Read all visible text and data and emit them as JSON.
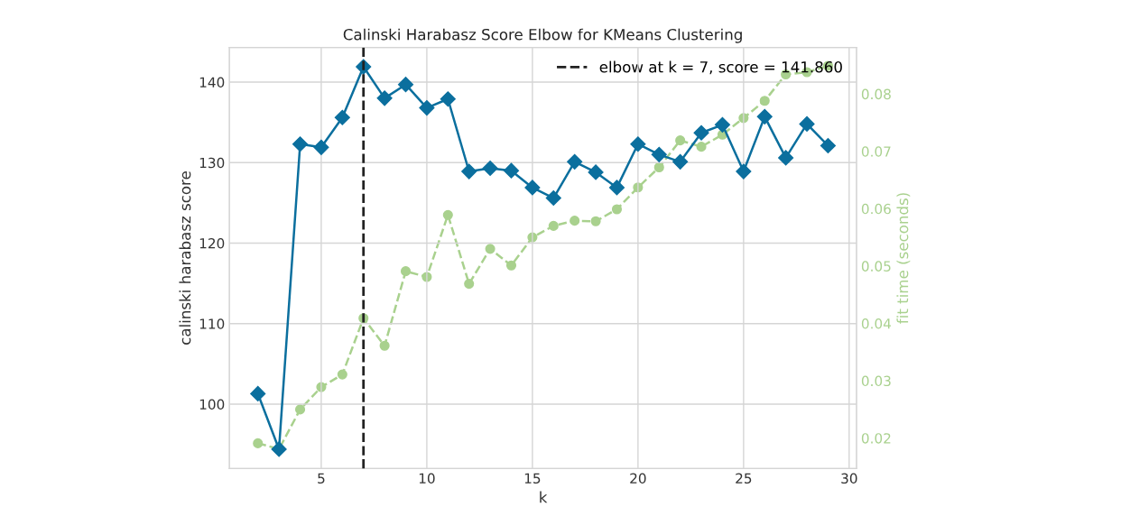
{
  "chart_data": {
    "type": "line",
    "title": "Calinski Harabasz Score Elbow for KMeans Clustering",
    "xlabel": "k",
    "ylabel": "calinski harabasz score",
    "y2label": "fit time (seconds)",
    "x": [
      2,
      3,
      4,
      5,
      6,
      7,
      8,
      9,
      10,
      11,
      12,
      13,
      14,
      15,
      16,
      17,
      18,
      19,
      20,
      21,
      22,
      23,
      24,
      25,
      26,
      27,
      28,
      29
    ],
    "series": [
      {
        "color": "#0b6f9e",
        "marker": "diamond",
        "line_style": "solid",
        "values": [
          101.3,
          94.4,
          132.3,
          131.9,
          135.6,
          141.9,
          138.0,
          139.7,
          136.8,
          137.9,
          128.9,
          129.3,
          129.0,
          126.9,
          125.6,
          130.1,
          128.8,
          126.9,
          132.3,
          131.0,
          130.1,
          133.7,
          134.7,
          128.9,
          135.7,
          130.6,
          134.8,
          132.1
        ]
      },
      {
        "color": "#a9d18e",
        "marker": "circle",
        "line_style": "dashed",
        "axis": "y2",
        "values": [
          0.0191,
          0.0181,
          0.025,
          0.0289,
          0.0311,
          0.0409,
          0.0361,
          0.0491,
          0.0481,
          0.0589,
          0.0469,
          0.053,
          0.0501,
          0.055,
          0.057,
          0.0579,
          0.0578,
          0.0599,
          0.0637,
          0.0672,
          0.0719,
          0.0708,
          0.0729,
          0.0758,
          0.0788,
          0.0834,
          0.0838,
          0.0849
        ]
      }
    ],
    "ref_lines": [
      {
        "axis": "x",
        "value": 7,
        "label": "elbow at k = 7, score = 141.860",
        "color": "#222222",
        "line_style": "dashed"
      }
    ],
    "xlim": [
      0.65,
      30.35
    ],
    "xticks": [
      5,
      10,
      15,
      20,
      25,
      30
    ],
    "ylim": [
      92,
      144.3
    ],
    "yticks": [
      100,
      110,
      120,
      130,
      140
    ],
    "y2lim": [
      0.0147,
      0.0881
    ],
    "y2ticks": [
      0.02,
      0.03,
      0.04,
      0.05,
      0.06,
      0.07,
      0.08
    ],
    "grid": true,
    "legend": "top right"
  }
}
